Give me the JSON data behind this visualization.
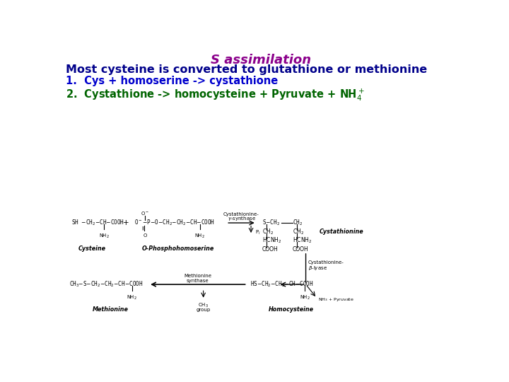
{
  "title": "S assimilation",
  "title_color": "#8B008B",
  "title_fontsize": 13,
  "subtitle": "Most cysteine is converted to glutathione or methionine",
  "subtitle_color": "#00008B",
  "subtitle_fontsize": 11.5,
  "line1": "1.  Cys + homoserine -> cystathione",
  "line1_color": "#0000CD",
  "line1_fontsize": 10.5,
  "line2_color": "#006400",
  "line2_fontsize": 10.5,
  "bg_color": "#FFFFFF",
  "diagram_text_color": "#000000",
  "fs_mol": 5.5,
  "fs_lab": 5.8,
  "fs_enz": 5.0
}
